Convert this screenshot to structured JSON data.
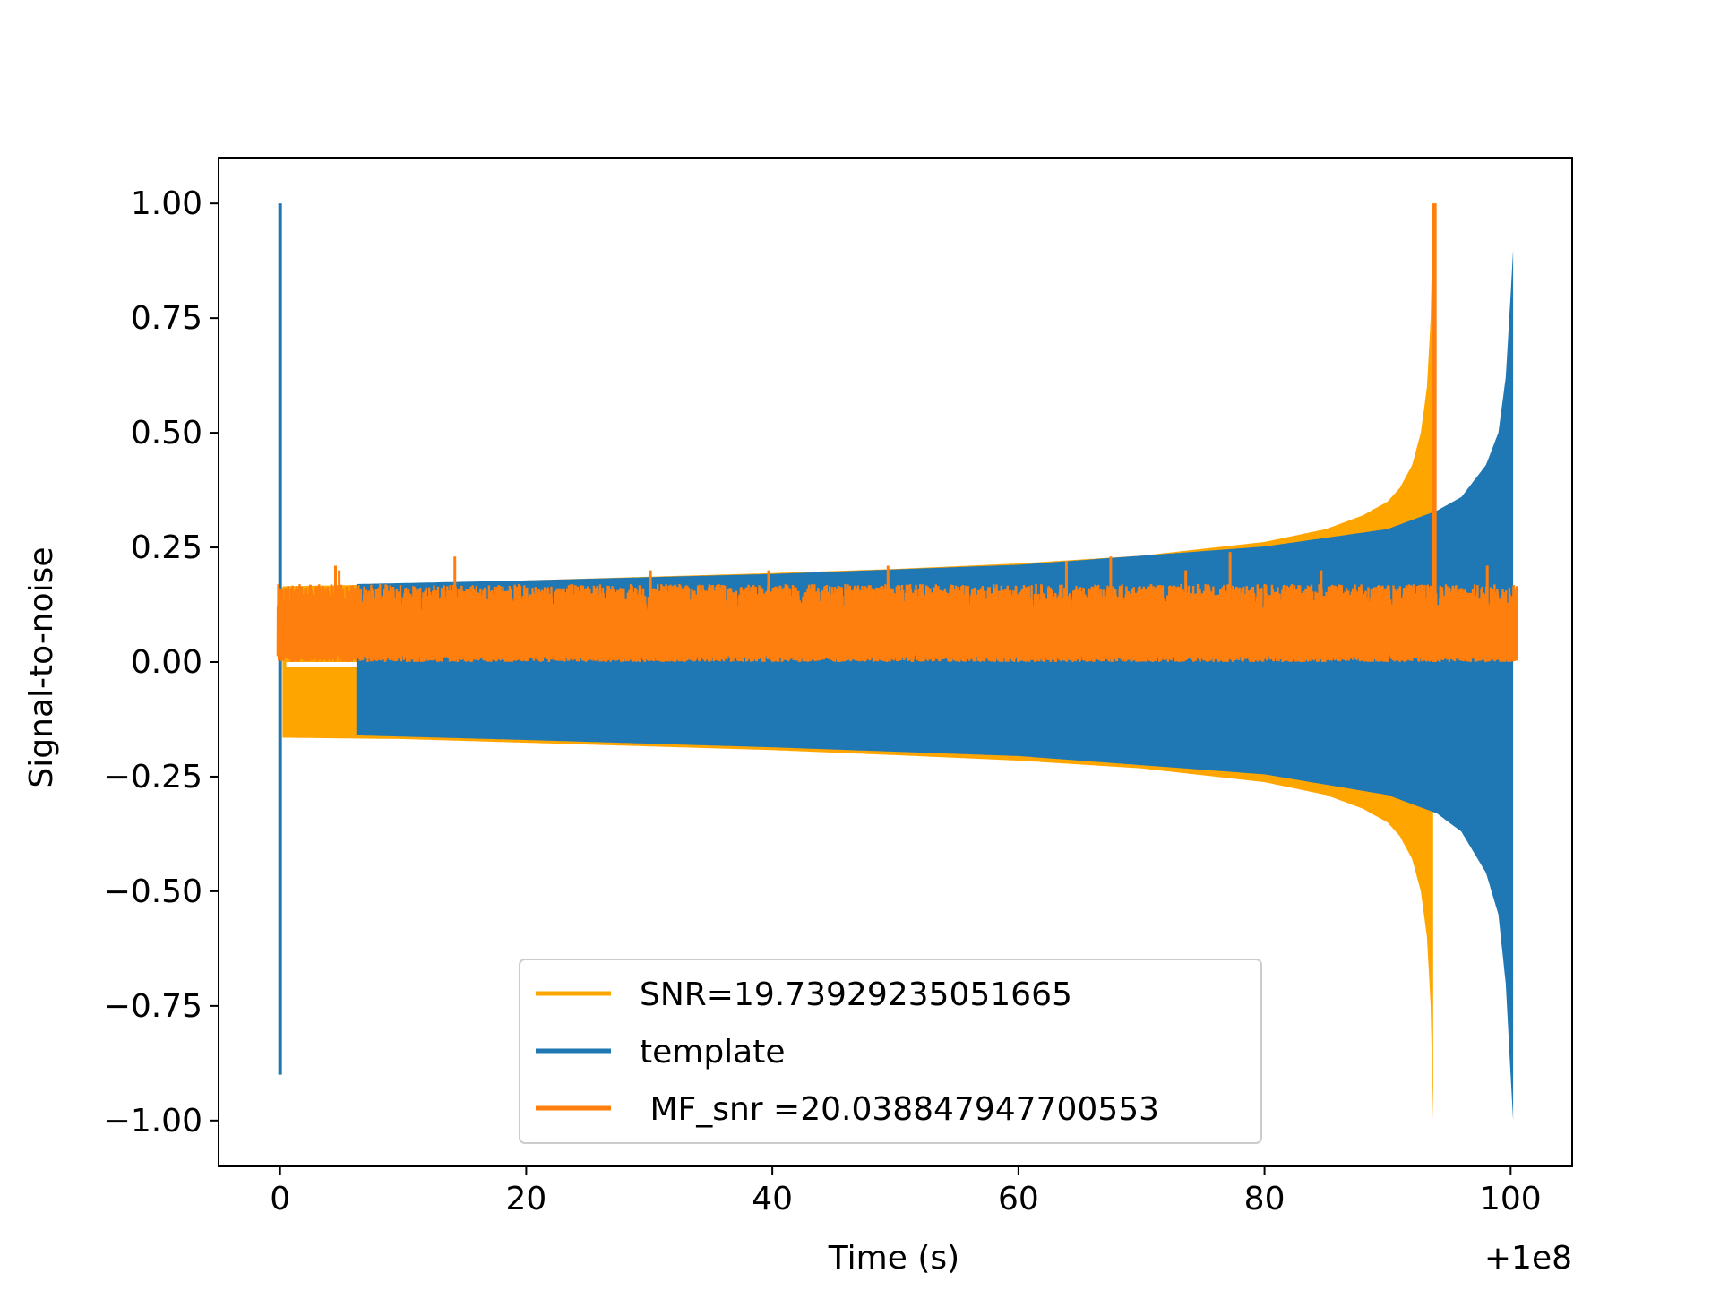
{
  "chart_data": {
    "type": "line",
    "title": "",
    "xlabel": "Time (s)",
    "ylabel": "Signal-to-noise",
    "x_offset_label": "+1e8",
    "xlim": [
      -5,
      105
    ],
    "ylim": [
      -1.1,
      1.1
    ],
    "xticks": [
      0,
      20,
      40,
      60,
      80,
      100
    ],
    "xtick_labels": [
      "0",
      "20",
      "40",
      "60",
      "80",
      "100"
    ],
    "yticks": [
      1.0,
      0.75,
      0.5,
      0.25,
      0.0,
      -0.25,
      -0.5,
      -0.75,
      -1.0
    ],
    "ytick_labels": [
      "1.00",
      "0.75",
      "0.50",
      "0.25",
      "0.00",
      "−0.25",
      "−0.50",
      "−0.75",
      "−1.00"
    ],
    "grid": false,
    "legend_position": "lower-center",
    "series": [
      {
        "name": "SNR=19.73929235051665",
        "color": "#FFA500",
        "kind": "chirp-envelope",
        "x_start": 0.2,
        "x_end": 93.7,
        "envelope": {
          "x": [
            0.2,
            10,
            20,
            30,
            40,
            50,
            60,
            70,
            80,
            85,
            88,
            90,
            91,
            92,
            92.7,
            93.2,
            93.5,
            93.7
          ],
          "upper": [
            0.165,
            0.17,
            0.178,
            0.186,
            0.194,
            0.203,
            0.215,
            0.232,
            0.262,
            0.29,
            0.32,
            0.35,
            0.38,
            0.43,
            0.5,
            0.6,
            0.75,
            1.0
          ],
          "lower": [
            -0.165,
            -0.168,
            -0.176,
            -0.184,
            -0.192,
            -0.203,
            -0.215,
            -0.232,
            -0.262,
            -0.29,
            -0.32,
            -0.35,
            -0.38,
            -0.43,
            -0.5,
            -0.6,
            -0.75,
            -1.0
          ]
        },
        "inner_gap": {
          "x": [
            0.5,
            6.2
          ],
          "upper": -0.01
        }
      },
      {
        "name": "template",
        "color": "#1F77B4",
        "kind": "chirp-envelope",
        "x_start": 6.2,
        "x_end": 100.2,
        "spike": {
          "x": 0.0,
          "max": 1.0,
          "min": -0.9
        },
        "envelope": {
          "x": [
            6.2,
            20,
            40,
            60,
            80,
            90,
            94,
            96,
            98,
            99,
            99.6,
            100,
            100.2
          ],
          "upper": [
            0.17,
            0.178,
            0.192,
            0.212,
            0.252,
            0.29,
            0.33,
            0.36,
            0.43,
            0.5,
            0.62,
            0.8,
            0.9
          ],
          "lower": [
            -0.16,
            -0.17,
            -0.186,
            -0.205,
            -0.245,
            -0.29,
            -0.33,
            -0.37,
            -0.46,
            -0.55,
            -0.7,
            -0.9,
            -1.0
          ]
        }
      },
      {
        "name": " MF_snr =20.038847947700553",
        "color": "#FF7F0E",
        "kind": "noise-band",
        "x_start": -0.2,
        "x_end": 100.5,
        "band": [
          0.0,
          0.13
        ],
        "peak": {
          "x": 93.8,
          "y": 1.0
        },
        "spikes": [
          {
            "x": 4.5,
            "y": 0.21
          },
          {
            "x": 14.2,
            "y": 0.23
          },
          {
            "x": 4.8,
            "y": 0.2
          },
          {
            "x": 30.1,
            "y": 0.2
          },
          {
            "x": 39.7,
            "y": 0.2
          },
          {
            "x": 49.4,
            "y": 0.21
          },
          {
            "x": 63.9,
            "y": 0.22
          },
          {
            "x": 67.5,
            "y": 0.23
          },
          {
            "x": 77.2,
            "y": 0.24
          },
          {
            "x": 73.6,
            "y": 0.2
          },
          {
            "x": 84.6,
            "y": 0.2
          },
          {
            "x": 98.1,
            "y": 0.21
          }
        ]
      }
    ]
  }
}
